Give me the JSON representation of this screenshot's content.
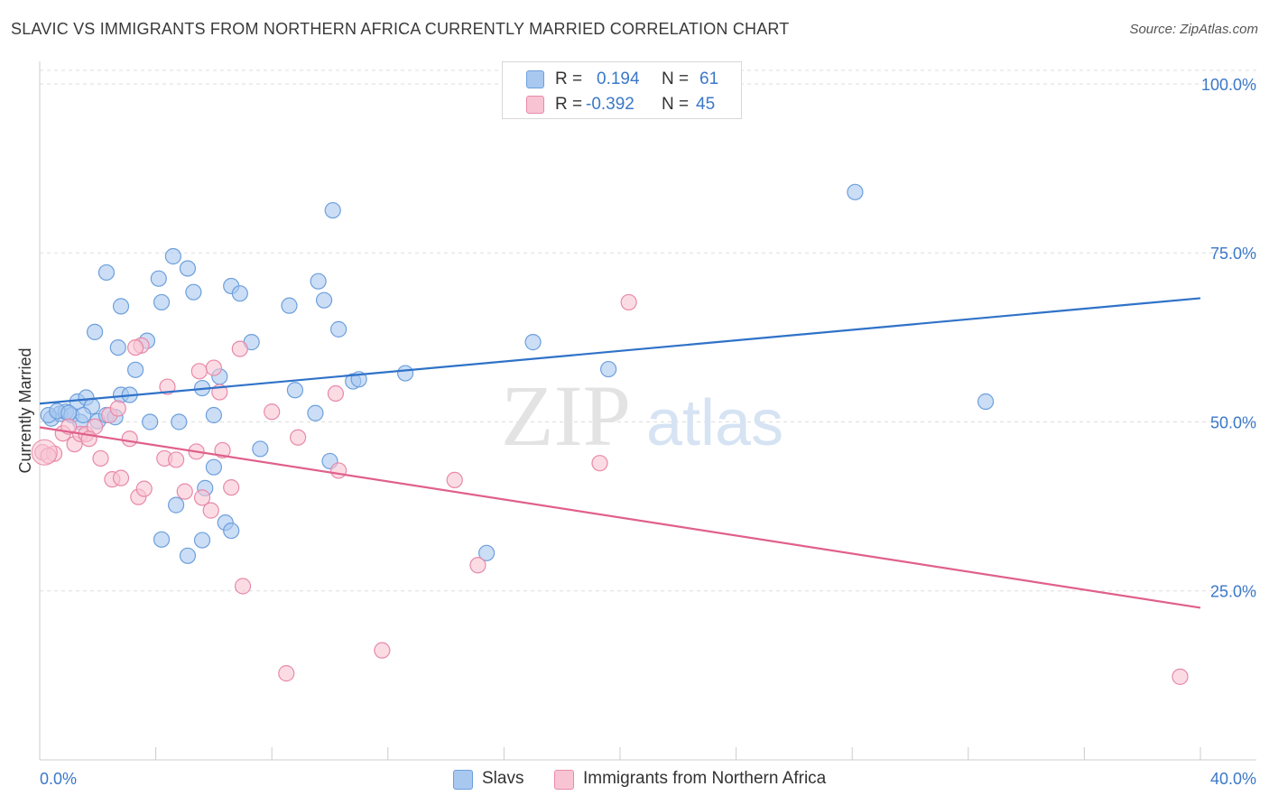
{
  "title": "SLAVIC VS IMMIGRANTS FROM NORTHERN AFRICA CURRENTLY MARRIED CORRELATION CHART",
  "source": "Source: ZipAtlas.com",
  "watermark": {
    "zip": "ZIP",
    "atlas": "atlas"
  },
  "legend": {
    "r_label": "R =",
    "n_label": "N =",
    "entries": [
      {
        "r": "0.194",
        "n": "61",
        "color": "#a9c8f0",
        "border": "#6d9fdc"
      },
      {
        "r": "-0.392",
        "n": "45",
        "color": "#f8c4d4",
        "border": "#e889a8"
      }
    ]
  },
  "colors": {
    "slavs_fill": "#a9c8f0",
    "slavs_stroke": "#6d9fdc",
    "slavs_line": "#2f72c8",
    "immig_fill": "#f8c4d4",
    "immig_stroke": "#e889a8",
    "immig_line": "#e0608c",
    "axis_label": "#3b78c8",
    "grid": "#dddddd"
  },
  "chart_data": {
    "type": "scatter",
    "title": "SLAVIC VS IMMIGRANTS FROM NORTHERN AFRICA CURRENTLY MARRIED CORRELATION CHART",
    "xlabel": "",
    "ylabel": "Currently Married",
    "xlim": [
      0,
      40
    ],
    "ylim": [
      0,
      102
    ],
    "x_tick_labels": [
      "0.0%",
      "40.0%"
    ],
    "y_tick_labels": [
      "100.0%",
      "75.0%",
      "50.0%",
      "25.0%"
    ],
    "y_ticks": [
      100,
      75,
      50,
      25
    ],
    "grid": true,
    "legend_position": "top-center",
    "series": [
      {
        "name": "Slavs",
        "trend": [
          [
            0,
            52.7
          ],
          [
            40,
            68.3
          ]
        ],
        "points": [
          [
            0.4,
            50.5
          ],
          [
            0.7,
            51.2
          ],
          [
            0.9,
            51.5
          ],
          [
            1.1,
            51.0
          ],
          [
            1.3,
            53.0
          ],
          [
            1.6,
            53.6
          ],
          [
            1.4,
            50.0
          ],
          [
            1.8,
            52.3
          ],
          [
            2.0,
            50.1
          ],
          [
            2.3,
            51.0
          ],
          [
            2.8,
            54.0
          ],
          [
            3.1,
            54.0
          ],
          [
            1.9,
            63.3
          ],
          [
            2.7,
            61.0
          ],
          [
            2.3,
            72.1
          ],
          [
            2.8,
            67.1
          ],
          [
            3.7,
            62.0
          ],
          [
            3.3,
            57.7
          ],
          [
            4.1,
            71.2
          ],
          [
            4.2,
            67.7
          ],
          [
            4.6,
            74.5
          ],
          [
            5.1,
            72.7
          ],
          [
            5.3,
            69.2
          ],
          [
            3.8,
            50.0
          ],
          [
            4.8,
            50.0
          ],
          [
            5.6,
            55.0
          ],
          [
            6.2,
            56.7
          ],
          [
            6.0,
            51.0
          ],
          [
            6.6,
            70.1
          ],
          [
            6.9,
            69.0
          ],
          [
            7.3,
            61.8
          ],
          [
            7.6,
            46.0
          ],
          [
            8.6,
            67.2
          ],
          [
            8.8,
            54.7
          ],
          [
            9.5,
            51.3
          ],
          [
            9.6,
            70.8
          ],
          [
            9.8,
            68.0
          ],
          [
            10.3,
            63.7
          ],
          [
            10.0,
            44.2
          ],
          [
            10.1,
            81.3
          ],
          [
            10.8,
            56.0
          ],
          [
            11.0,
            56.3
          ],
          [
            12.6,
            57.2
          ],
          [
            5.7,
            40.2
          ],
          [
            6.0,
            43.3
          ],
          [
            4.7,
            37.7
          ],
          [
            6.4,
            35.1
          ],
          [
            6.6,
            33.9
          ],
          [
            4.2,
            32.6
          ],
          [
            5.6,
            32.5
          ],
          [
            5.1,
            30.2
          ],
          [
            15.4,
            30.6
          ],
          [
            17.0,
            61.8
          ],
          [
            19.6,
            57.8
          ],
          [
            28.1,
            84.0
          ],
          [
            32.6,
            53.0
          ],
          [
            1.5,
            51.0
          ],
          [
            2.6,
            50.7
          ],
          [
            0.3,
            51.0
          ],
          [
            0.6,
            51.6
          ],
          [
            1.0,
            51.3
          ]
        ]
      },
      {
        "name": "Immigrants from Northern Africa",
        "trend": [
          [
            0,
            49.2
          ],
          [
            40,
            22.5
          ]
        ],
        "points": [
          [
            0.1,
            45.5
          ],
          [
            0.5,
            45.3
          ],
          [
            0.8,
            48.3
          ],
          [
            1.2,
            46.7
          ],
          [
            1.4,
            48.2
          ],
          [
            1.6,
            48.2
          ],
          [
            1.9,
            49.3
          ],
          [
            2.1,
            44.6
          ],
          [
            2.4,
            51.0
          ],
          [
            2.5,
            41.5
          ],
          [
            2.8,
            41.7
          ],
          [
            3.1,
            47.5
          ],
          [
            3.4,
            38.9
          ],
          [
            3.6,
            40.1
          ],
          [
            3.5,
            61.3
          ],
          [
            4.4,
            55.2
          ],
          [
            4.3,
            44.6
          ],
          [
            4.7,
            44.4
          ],
          [
            5.0,
            39.7
          ],
          [
            5.4,
            45.6
          ],
          [
            5.6,
            38.8
          ],
          [
            5.5,
            57.5
          ],
          [
            5.9,
            36.9
          ],
          [
            6.0,
            58.0
          ],
          [
            6.2,
            54.4
          ],
          [
            6.3,
            45.8
          ],
          [
            6.6,
            40.3
          ],
          [
            6.9,
            60.8
          ],
          [
            7.0,
            25.7
          ],
          [
            8.0,
            51.5
          ],
          [
            8.9,
            47.7
          ],
          [
            10.2,
            54.2
          ],
          [
            10.3,
            42.8
          ],
          [
            14.3,
            41.4
          ],
          [
            15.1,
            28.8
          ],
          [
            19.3,
            43.9
          ],
          [
            20.3,
            67.7
          ],
          [
            11.8,
            16.2
          ],
          [
            8.5,
            12.8
          ],
          [
            39.3,
            12.3
          ],
          [
            1.0,
            49.3
          ],
          [
            2.7,
            52.0
          ],
          [
            0.3,
            45.0
          ],
          [
            1.7,
            47.5
          ],
          [
            3.3,
            61.0
          ]
        ]
      }
    ]
  }
}
